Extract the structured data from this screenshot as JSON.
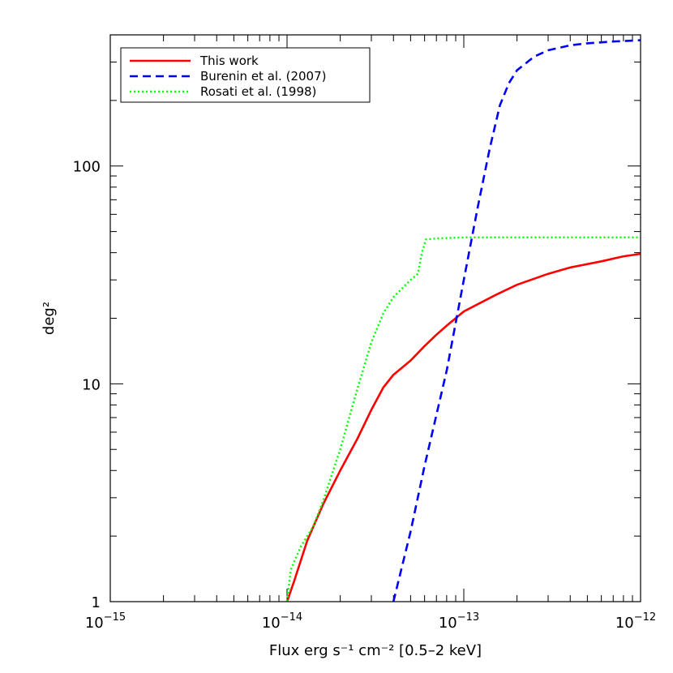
{
  "chart_data": {
    "type": "line",
    "xlabel": "Flux erg s⁻¹ cm⁻² [0.5–2 keV]",
    "ylabel": "deg²",
    "xscale": "log",
    "yscale": "log",
    "xlim": [
      1e-15,
      1e-12
    ],
    "ylim": [
      1,
      400
    ],
    "x_ticks": [
      {
        "value": 1e-15,
        "base": "10",
        "exp": "−15"
      },
      {
        "value": 1e-14,
        "base": "10",
        "exp": "−14"
      },
      {
        "value": 1e-13,
        "base": "10",
        "exp": "−13"
      },
      {
        "value": 1e-12,
        "base": "10",
        "exp": "−12"
      }
    ],
    "y_ticks": [
      {
        "value": 1,
        "label": "1"
      },
      {
        "value": 10,
        "label": "10"
      },
      {
        "value": 100,
        "label": "100"
      }
    ],
    "grid": false,
    "legend_position": "top-left",
    "series": [
      {
        "name": "This work",
        "color": "#ff0000",
        "style": "solid",
        "x": [
          1e-14,
          1.1e-14,
          1.3e-14,
          1.6e-14,
          2e-14,
          2.5e-14,
          3e-14,
          3.5e-14,
          4e-14,
          5e-14,
          6e-14,
          7e-14,
          8e-14,
          1e-13,
          1.5e-13,
          2e-13,
          3e-13,
          4e-13,
          6e-13,
          8e-13,
          1e-12
        ],
        "y": [
          1.0,
          1.25,
          1.9,
          2.8,
          4.0,
          5.6,
          7.6,
          9.6,
          11.0,
          12.8,
          14.9,
          16.8,
          18.5,
          21.5,
          25.5,
          28.5,
          32.0,
          34.2,
          36.5,
          38.5,
          39.5
        ]
      },
      {
        "name": "Burenin et al. (2007)",
        "color": "#0000ff",
        "style": "dashed",
        "x": [
          4e-14,
          5e-14,
          6e-14,
          8e-14,
          1e-13,
          1.2e-13,
          1.4e-13,
          1.6e-13,
          1.8e-13,
          2e-13,
          2.5e-13,
          3e-13,
          4e-13,
          5e-13,
          7e-13,
          1e-12
        ],
        "y": [
          1.0,
          2.1,
          4.2,
          11.5,
          30.0,
          65.0,
          120.0,
          190.0,
          240.0,
          275.0,
          318.0,
          340.0,
          358.0,
          366.0,
          373.0,
          378.0
        ]
      },
      {
        "name": "Rosati et al. (1998)",
        "color": "#00ff00",
        "style": "dotted",
        "x": [
          1e-14,
          1.05e-14,
          1.2e-14,
          1.4e-14,
          1.6e-14,
          2e-14,
          2.5e-14,
          3e-14,
          3.5e-14,
          4e-14,
          5e-14,
          5.5e-14,
          5.8e-14,
          6.1e-14,
          7e-14,
          1e-13,
          2e-13,
          5e-13,
          1e-12
        ],
        "y": [
          1.0,
          1.4,
          1.8,
          2.2,
          2.9,
          5.0,
          9.5,
          15.5,
          21.0,
          25.0,
          30.0,
          32.0,
          40.0,
          46.0,
          46.5,
          47.0,
          47.0,
          47.0,
          47.0
        ]
      }
    ]
  }
}
